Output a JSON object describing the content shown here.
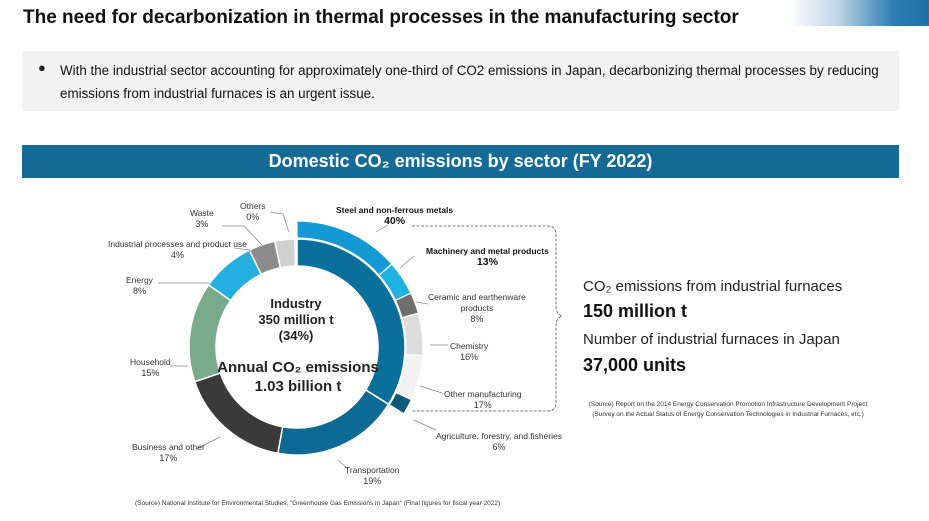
{
  "header": {
    "title": "The need for decarbonization in thermal processes in the manufacturing sector",
    "bullet": "With the industrial sector accounting for approximately one-third of CO2 emissions in Japan, decarbonizing thermal processes by reducing emissions from industrial furnaces is an urgent issue."
  },
  "banner": {
    "title": "Domestic CO₂ emissions by sector (FY 2022)"
  },
  "chart_data": {
    "type": "pie",
    "style": "donut",
    "categories": [
      "Steel and non-ferrous metals",
      "Machinery and metal products",
      "Ceramic and earthenware products",
      "Chemistry",
      "Other manufacturing",
      "Agriculture, forestry, and fisheries",
      "Transportation",
      "Business and other",
      "Household",
      "Energy",
      "Industrial processes and product use",
      "Waste",
      "Others"
    ],
    "inner_ring": {
      "categories": [
        "Steel and non-ferrous metals",
        "Machinery and metal products",
        "Ceramic and earthenware products",
        "Chemistry",
        "Other manufacturing",
        "Agriculture, forestry, and fisheries"
      ],
      "values": [
        40,
        13,
        8,
        16,
        17,
        6
      ],
      "unit": "% of industry"
    },
    "outer_ring": {
      "categories": [
        "Industry",
        "Transportation",
        "Business and other",
        "Household",
        "Energy",
        "Industrial processes and product use",
        "Waste",
        "Others"
      ],
      "values": [
        34,
        19,
        17,
        15,
        8,
        4,
        3,
        0
      ],
      "unit": "% of total"
    },
    "labels": [
      {
        "name": "Steel and non-ferrous metals",
        "value": "40%",
        "bold": true
      },
      {
        "name": "Machinery and metal products",
        "value": "13%",
        "bold": true
      },
      {
        "name": "Ceramic and earthenware\nproducts",
        "value": "8%"
      },
      {
        "name": "Chemistry",
        "value": "16%"
      },
      {
        "name": "Other manufacturing",
        "value": "17%"
      },
      {
        "name": "Agriculture, forestry, and fisheries",
        "value": "6%"
      },
      {
        "name": "Transportation",
        "value": "19%"
      },
      {
        "name": "Business and other",
        "value": "17%"
      },
      {
        "name": "Household",
        "value": "15%"
      },
      {
        "name": "Energy",
        "value": "8%"
      },
      {
        "name": "Industrial processes and product use",
        "value": "4%"
      },
      {
        "name": "Waste",
        "value": "3%"
      },
      {
        "name": "Others",
        "value": "0%"
      }
    ],
    "center": {
      "line1": "Industry",
      "line2": "350 million t",
      "line3": "(34%)",
      "line4": "Annual CO₂ emissions",
      "line5": "1.03 billion t"
    },
    "colors": {
      "industry": "#0b6f9c",
      "steel": "#1599d4",
      "machinery": "#1fb1e0",
      "ceramic": "#6f6f6f",
      "chemistry": "#dcdcdc",
      "other_manufacturing": "#f2f2f2",
      "agriculture": "#0e5a7b",
      "transportation": "#0d6a94",
      "business": "#3a3a3a",
      "household": "#79aa8a",
      "energy": "#23b0e0",
      "industrial_processes": "#8c8c8c",
      "waste": "#d0d0d0",
      "others": "#e6e6e6"
    }
  },
  "side": {
    "label1": "CO₂ emissions from industrial furnaces",
    "value1": "150 million t",
    "label2": "Number of industrial furnaces in Japan",
    "value2": "37,000 units",
    "source": "(Source) Report on the 2014 Energy Conservation Promotion Infrastructure Development Project (Survey on the Actual Status of Energy Conservation Technologies in Industrial Furnaces, etc.)"
  },
  "source_bottom": "(Source) National Institute for Environmental Studies, \"Greenhouse Gas Emissions in Japan\" (Final figures for fiscal year 2022)"
}
